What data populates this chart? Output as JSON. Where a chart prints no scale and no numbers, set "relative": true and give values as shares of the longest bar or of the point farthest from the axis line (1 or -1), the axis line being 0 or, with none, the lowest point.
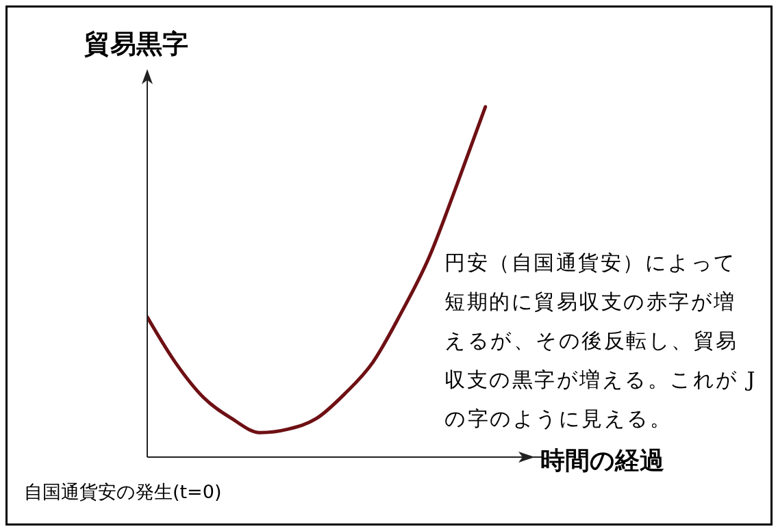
{
  "chart_data": {
    "type": "line",
    "relative": true,
    "ylabel": "貿易黒字",
    "xlabel": "時間の経過",
    "categories": [
      null,
      null,
      null,
      null,
      null,
      null,
      null,
      null,
      null,
      null,
      null,
      null,
      null
    ],
    "series": [
      {
        "color": "#6e1014",
        "values": [
          0.4,
          0.27,
          0.17,
          0.11,
          0.07,
          0.08,
          0.11,
          0.18,
          0.27,
          0.41,
          0.57,
          0.78,
          1.0
        ]
      }
    ],
    "annotations": [
      "円安（自国通貨安）によって短期的に貿易収支の赤字が増えるが、その後反転し、貿易収支の黒字が増える。これが J の字のように見える。",
      "自国通貨安の発生(t=0)"
    ],
    "grid": false,
    "legend": false,
    "marker": "none",
    "line_style": "solid"
  }
}
